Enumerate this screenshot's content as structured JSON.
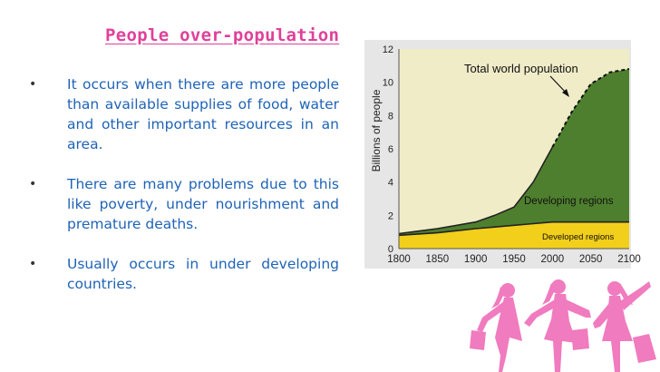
{
  "slide": {
    "title": "People over-population",
    "bullets": [
      "It occurs when there are more people than available supplies of food, water and other important resources in an area.",
      "There are many problems due to this like poverty, under nourishment and premature deaths.",
      "Usually occurs in under developing countries."
    ],
    "bullet_glyph": "•"
  },
  "colors": {
    "title": "#e0409a",
    "body_text": "#1f63b6",
    "chart_bg": "#f0ecc8",
    "developing_fill": "#4e7f2e",
    "developed_fill": "#f2cf1a",
    "silhouette": "#f07bbf"
  },
  "chart_data": {
    "type": "area",
    "title": "",
    "ylabel": "Billions of people",
    "xlabel": "",
    "ylim": [
      0,
      12
    ],
    "xlim": [
      1800,
      2100
    ],
    "yticks": [
      0,
      2,
      4,
      6,
      8,
      10,
      12
    ],
    "xticks": [
      1800,
      1850,
      1900,
      1950,
      2000,
      2050,
      2100
    ],
    "grid": false,
    "annotations": [
      "Total world population",
      "Developing regions",
      "Developed regions"
    ],
    "x": [
      1800,
      1850,
      1900,
      1925,
      1950,
      1975,
      2000,
      2025,
      2050,
      2075,
      2100
    ],
    "series": [
      {
        "name": "Developed regions",
        "values": [
          0.8,
          0.95,
          1.2,
          1.3,
          1.4,
          1.5,
          1.6,
          1.6,
          1.6,
          1.6,
          1.6
        ]
      },
      {
        "name": "Total world population",
        "values": [
          0.9,
          1.2,
          1.6,
          2.0,
          2.5,
          4.0,
          6.1,
          8.2,
          9.9,
          10.6,
          10.8
        ]
      }
    ]
  }
}
